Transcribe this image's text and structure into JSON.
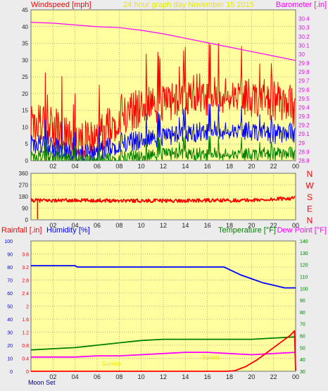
{
  "colors": {
    "panel_bg": "#ffffa0",
    "outer_bg": "#ececec",
    "border": "#6f6f6f",
    "tick_label": "#222222",
    "title": "#e8e800",
    "wind_max": "#ff0000",
    "wind_avg": "#0000ff",
    "wind_min": "#008000",
    "baro": "#ff00ff",
    "direction": "#ff0000",
    "compass": "#ff0000",
    "rain": "#ff0000",
    "humidity": "#0000ff",
    "temperature": "#008000",
    "dewpoint": "#ff00ff",
    "moon_label": "#000080",
    "solar": "#e8e800"
  },
  "chart_data": [
    {
      "id": "wind_baro",
      "type": "line",
      "title": "24 hour graph day   November 15 2015",
      "ylabel_left": "Windspeed [mph]",
      "ylabel_right": "Barometer [.in]",
      "x_ticks": [
        "02",
        "04",
        "06",
        "08",
        "10",
        "12",
        "14",
        "16",
        "18",
        "20",
        "22",
        "00"
      ],
      "x_range_hours": [
        0,
        24
      ],
      "ylim_left": [
        0,
        45
      ],
      "yticks_left": [
        "0",
        "5",
        "10",
        "15",
        "20",
        "25",
        "30",
        "35",
        "40",
        "45"
      ],
      "ylim_right": [
        28.8,
        30.5
      ],
      "yticks_right": [
        "28.8",
        "28.9",
        "29",
        "29.1",
        "29.2",
        "29.3",
        "29.4",
        "29.5",
        "29.6",
        "29.7",
        "29.8",
        "29.9",
        "30",
        "30.1",
        "30.2",
        "30.3",
        "30.4"
      ],
      "series": [
        {
          "name": "max",
          "axis": "left",
          "color": "#ff0000",
          "profile_hours": [
            0,
            2,
            3,
            4,
            5,
            6,
            7,
            8,
            9,
            10,
            12,
            14,
            15,
            16,
            18,
            20,
            22,
            23,
            24
          ],
          "profile_values": [
            11,
            10,
            8,
            7,
            6,
            8,
            10,
            13,
            14,
            16,
            17,
            18,
            21,
            19,
            20,
            19,
            18,
            17,
            15
          ],
          "spread": 6
        },
        {
          "name": "avg",
          "axis": "left",
          "color": "#0000ff",
          "profile_hours": [
            0,
            2,
            3,
            4,
            5,
            6,
            8,
            10,
            12,
            14,
            16,
            18,
            20,
            22,
            24
          ],
          "profile_values": [
            5,
            4,
            3,
            2,
            2,
            3,
            5,
            6,
            7,
            8,
            9,
            9,
            9,
            8,
            8
          ],
          "spread": 3
        },
        {
          "name": "min",
          "axis": "left",
          "color": "#008000",
          "profile_hours": [
            0,
            2,
            4,
            6,
            8,
            10,
            12,
            14,
            16,
            18,
            20,
            22,
            24
          ],
          "profile_values": [
            1,
            1,
            0,
            0,
            1,
            1,
            2,
            2,
            2,
            2,
            2,
            2,
            2
          ],
          "spread": 2
        },
        {
          "name": "barometer",
          "axis": "right",
          "color": "#ff00ff",
          "x": [
            0,
            2,
            4,
            6,
            8,
            10,
            12,
            14,
            16,
            18,
            20,
            22,
            24
          ],
          "y": [
            30.36,
            30.35,
            30.33,
            30.31,
            30.3,
            30.27,
            30.23,
            30.18,
            30.13,
            30.08,
            30.03,
            29.98,
            29.93
          ]
        }
      ]
    },
    {
      "id": "wind_direction",
      "type": "line",
      "x_ticks": [
        "02",
        "04",
        "06",
        "08",
        "10",
        "12",
        "14",
        "16",
        "18",
        "20",
        "22",
        "00"
      ],
      "ylim": [
        0,
        360
      ],
      "yticks": [
        "0",
        "90",
        "180",
        "270",
        "360"
      ],
      "compass_labels": [
        "N",
        "W",
        "S",
        "E",
        "N"
      ],
      "series": [
        {
          "name": "direction",
          "color": "#ff0000",
          "profile_hours": [
            0,
            1,
            2,
            4,
            6,
            8,
            10,
            12,
            14,
            16,
            18,
            20,
            22,
            23,
            24
          ],
          "profile_values": [
            150,
            150,
            150,
            150,
            150,
            150,
            148,
            148,
            148,
            150,
            150,
            152,
            158,
            165,
            168
          ],
          "spread": 14,
          "outlier_hour": 0.6,
          "outlier_value": 5
        }
      ]
    },
    {
      "id": "rain_humidity_temp",
      "type": "line",
      "ylabel_rain": "Rainfall [.in]",
      "ylabel_humidity": "Humidity [%]",
      "ylabel_temp": "Temperature [°F]",
      "ylabel_dew": "Dew Point [°F]",
      "x_ticks": [
        "02",
        "04",
        "06",
        "08",
        "10",
        "12",
        "14",
        "16",
        "18",
        "20",
        "22",
        "00"
      ],
      "moon_label": "Moon Set",
      "solar_labels": [
        "Sunrise",
        "Sunset"
      ],
      "ylim_humidity": [
        0,
        100
      ],
      "yticks_humidity": [
        "0",
        "10",
        "20",
        "30",
        "40",
        "50",
        "60",
        "70",
        "80",
        "90",
        "100"
      ],
      "ylim_rain": [
        0,
        4.0
      ],
      "yticks_rain": [
        "0",
        "0.4",
        "0.8",
        "1.2",
        "1.6",
        "2",
        "2.4",
        "2.8",
        "3.2",
        "3.6"
      ],
      "ylim_temp": [
        30,
        140
      ],
      "yticks_temp": [
        "30",
        "40",
        "50",
        "60",
        "70",
        "80",
        "90",
        "100",
        "110",
        "120",
        "130",
        "140"
      ],
      "series": [
        {
          "name": "humidity",
          "color": "#0000ff",
          "x": [
            0,
            4,
            4.2,
            6,
            8,
            10,
            12,
            14,
            16,
            17.5,
            18,
            19,
            20,
            21,
            22,
            23,
            24
          ],
          "y": [
            81,
            81,
            80,
            80,
            80,
            80,
            80,
            80,
            80,
            80,
            78,
            74,
            71,
            68,
            66,
            64,
            64
          ]
        },
        {
          "name": "temperature",
          "color": "#008000",
          "x": [
            0,
            2,
            4,
            6,
            8,
            10,
            12,
            14,
            16,
            18,
            20,
            22,
            24
          ],
          "y": [
            48,
            49,
            50,
            52,
            54,
            56,
            57,
            57,
            57,
            57,
            57,
            58,
            59
          ]
        },
        {
          "name": "dewpoint",
          "color": "#ff00ff",
          "x": [
            0,
            2,
            4,
            6,
            8,
            10,
            12,
            14,
            16,
            18,
            20,
            22,
            24
          ],
          "y": [
            42,
            42,
            42,
            43,
            43,
            44,
            45,
            46,
            46,
            45,
            44,
            45,
            46
          ]
        },
        {
          "name": "rainfall",
          "color": "#ff0000",
          "x": [
            0,
            17.8,
            18.5,
            19.5,
            20.5,
            21.5,
            22.5,
            23.5,
            23.9,
            24
          ],
          "y": [
            0,
            0,
            0.02,
            0.15,
            0.35,
            0.6,
            0.85,
            1.1,
            1.24,
            0.02
          ]
        }
      ]
    }
  ]
}
